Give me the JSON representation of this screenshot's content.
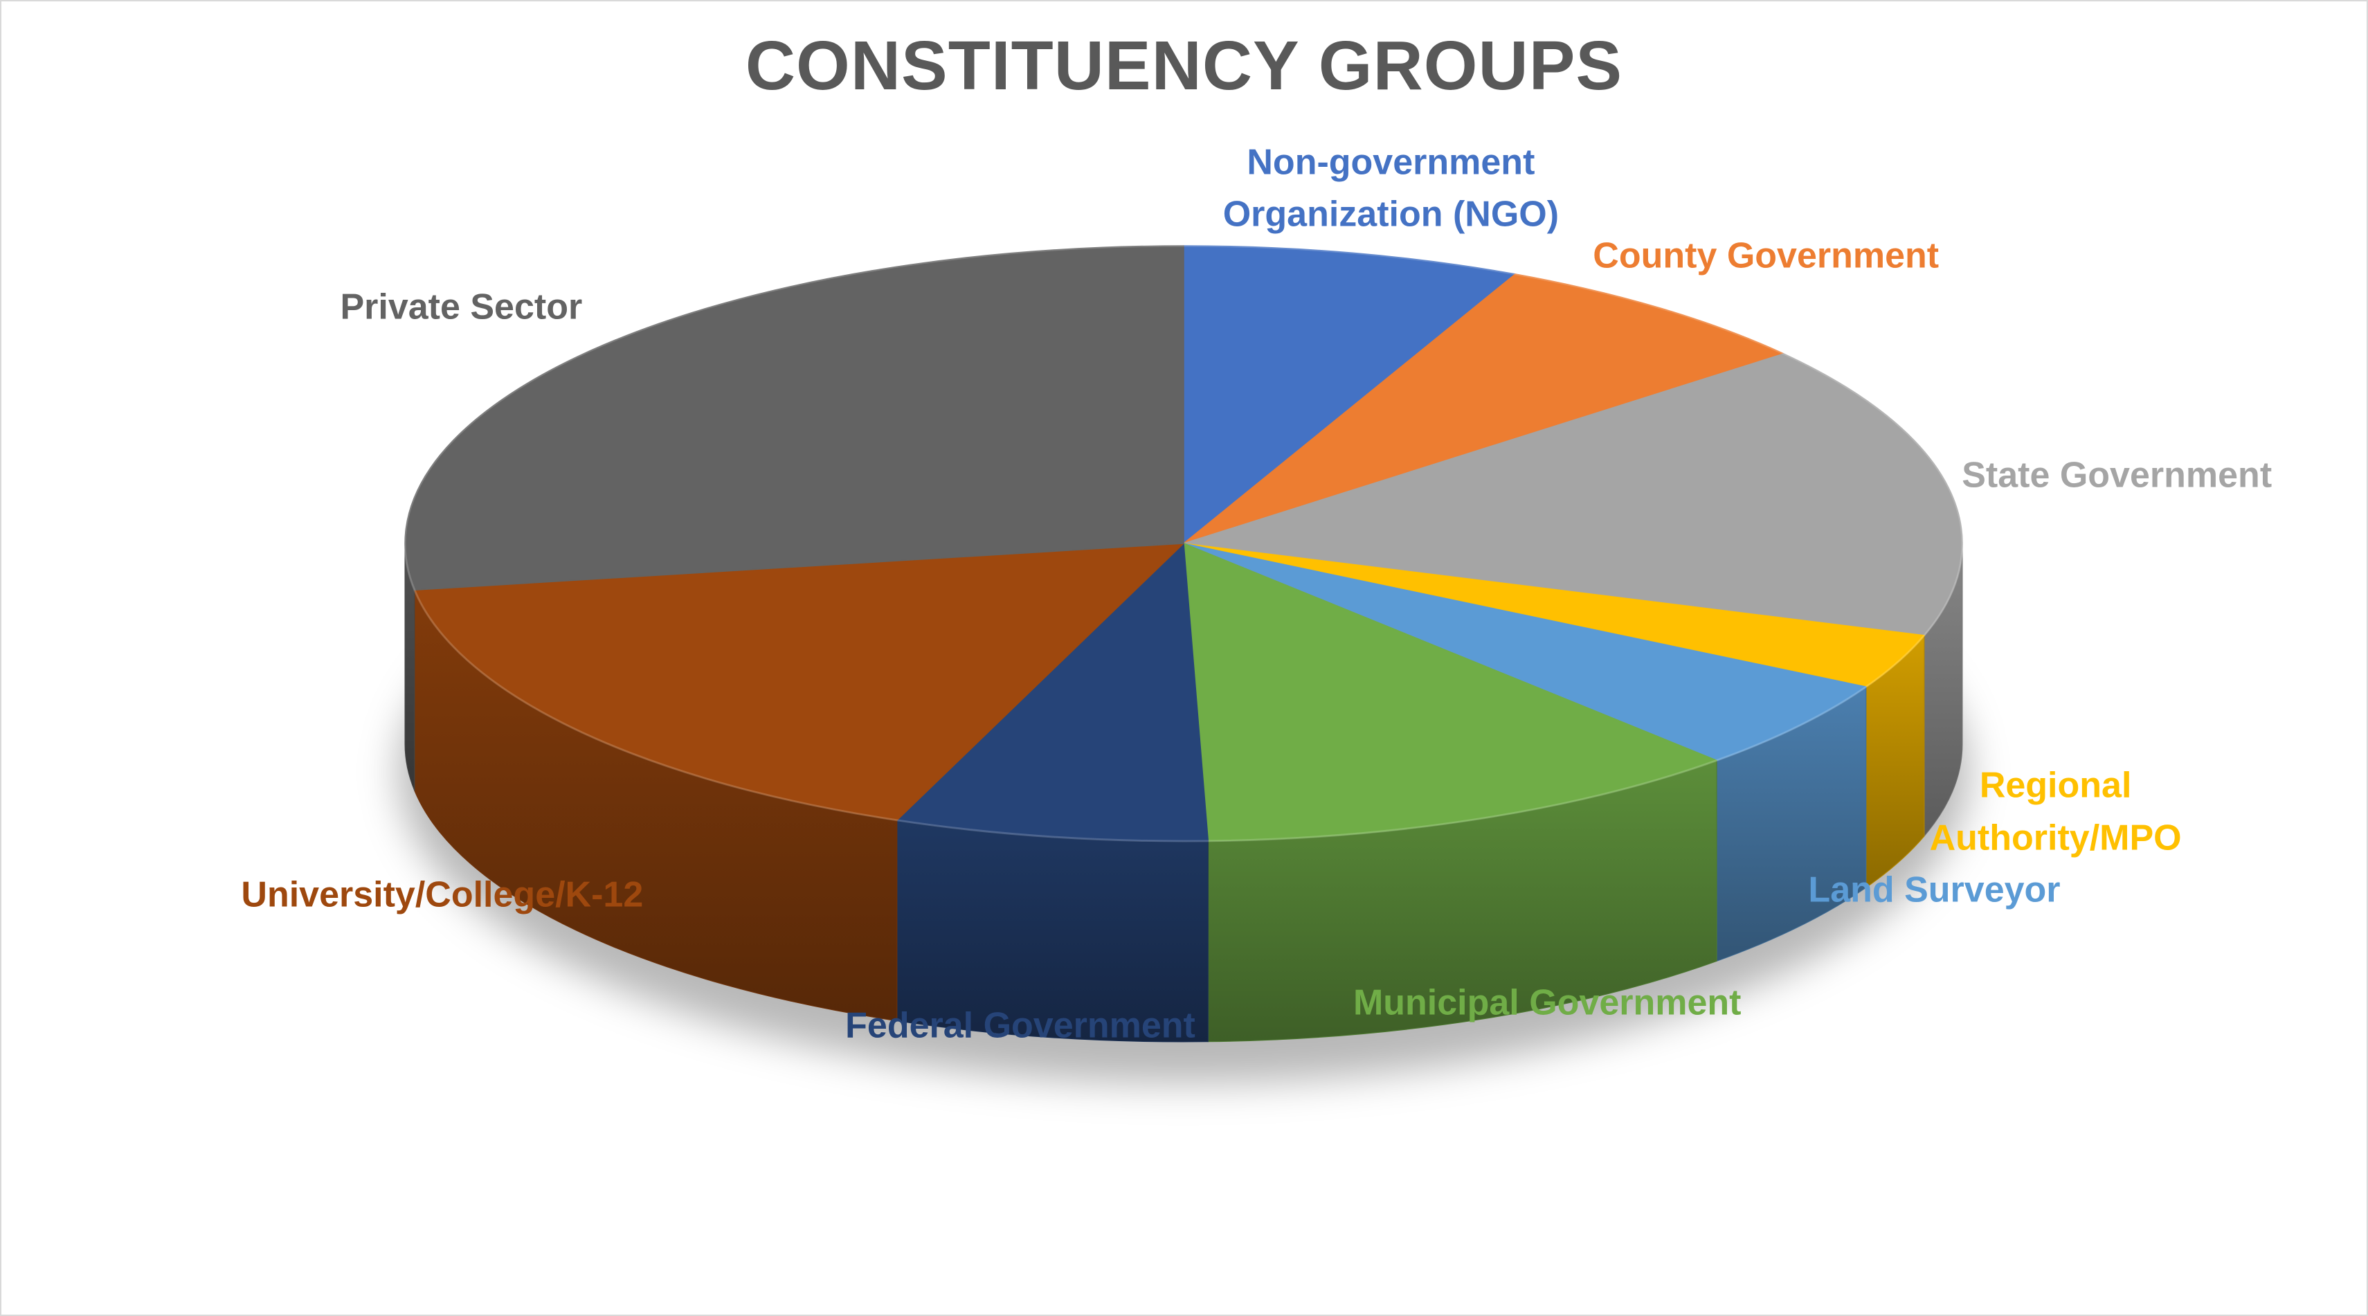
{
  "chart_data": {
    "type": "pie",
    "title": "CONSTITUENCY GROUPS",
    "style": "3d",
    "slices": [
      {
        "label": "Non-government Organization (NGO)",
        "label_lines": [
          "Non-government",
          "Organization (NGO)"
        ],
        "value": 7.0,
        "color": "#4472C4"
      },
      {
        "label": "County Government",
        "label_lines": [
          "County Government"
        ],
        "value": 7.0,
        "color": "#ED7D31"
      },
      {
        "label": "State Government",
        "label_lines": [
          "State Government"
        ],
        "value": 16.0,
        "color": "#A5A5A5"
      },
      {
        "label": "Regional Authority/MPO",
        "label_lines": [
          "Regional",
          "Authority/MPO"
        ],
        "value": 3.0,
        "color": "#FFC000"
      },
      {
        "label": "Land Surveyor",
        "label_lines": [
          "Land Surveyor"
        ],
        "value": 5.0,
        "color": "#5B9BD5"
      },
      {
        "label": "Municipal Government",
        "label_lines": [
          "Municipal Government"
        ],
        "value": 11.5,
        "color": "#70AD47"
      },
      {
        "label": "Federal Government",
        "label_lines": [
          "Federal Government"
        ],
        "value": 6.5,
        "color": "#264478"
      },
      {
        "label": "University/College/K-12",
        "label_lines": [
          "University/College/K-12"
        ],
        "value": 16.5,
        "color": "#9E480E"
      },
      {
        "label": "Private Sector",
        "label_lines": [
          "Private Sector"
        ],
        "value": 27.5,
        "color": "#636363"
      }
    ]
  }
}
